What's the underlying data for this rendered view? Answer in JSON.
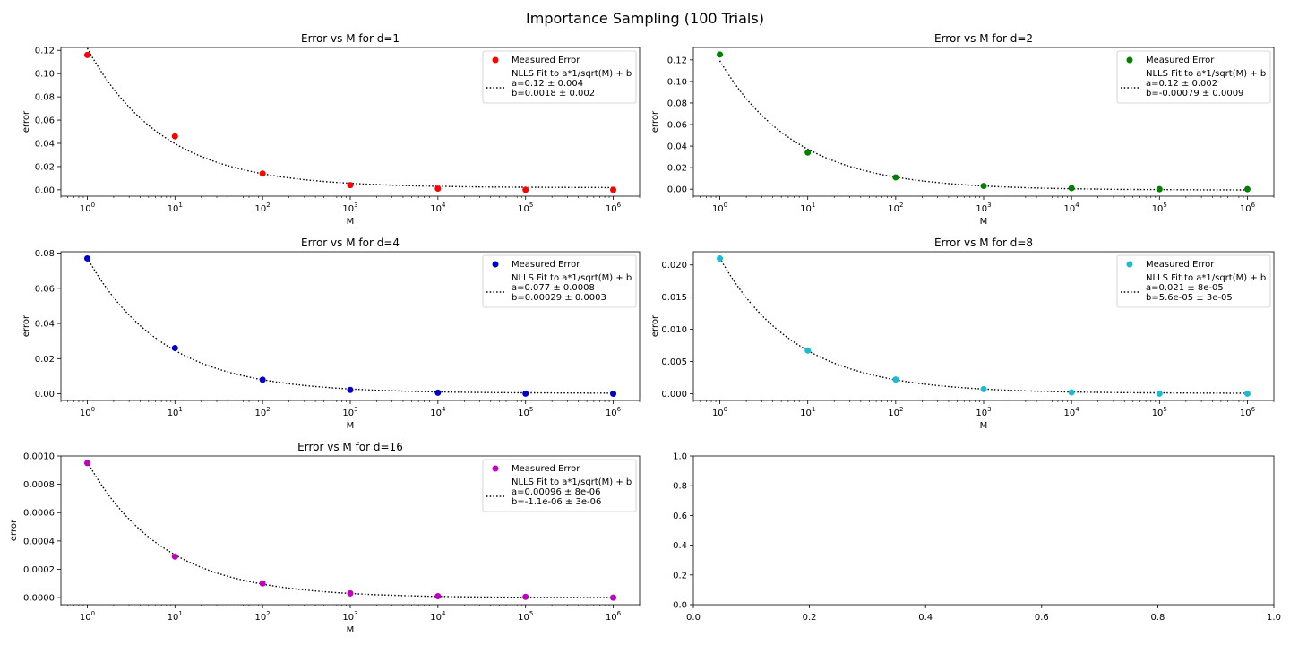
{
  "figure": {
    "suptitle": "Importance Sampling (100 Trials)"
  },
  "chart_data": [
    {
      "type": "scatter",
      "title": "Error vs M for d=1",
      "xlabel": "M",
      "ylabel": "error",
      "xscale": "log",
      "xlim": [
        0.5,
        2000000
      ],
      "ylim": [
        -0.0055,
        0.1225
      ],
      "yticks": [
        0,
        0.02,
        0.04,
        0.06,
        0.08,
        0.1,
        0.12
      ],
      "yticklabels": [
        "0.00",
        "0.02",
        "0.04",
        "0.06",
        "0.08",
        "0.10",
        "0.12"
      ],
      "xticks": [
        1,
        10,
        100,
        1000,
        10000,
        100000,
        1000000
      ],
      "xticklabels": [
        {
          "base": "10",
          "exp": "0"
        },
        {
          "base": "10",
          "exp": "1"
        },
        {
          "base": "10",
          "exp": "2"
        },
        {
          "base": "10",
          "exp": "3"
        },
        {
          "base": "10",
          "exp": "4"
        },
        {
          "base": "10",
          "exp": "5"
        },
        {
          "base": "10",
          "exp": "6"
        }
      ],
      "color": "#ff0000",
      "x": [
        1,
        10,
        100,
        1000,
        10000,
        100000,
        1000000
      ],
      "series": [
        {
          "name": "Measured Error",
          "values": [
            0.116,
            0.046,
            0.014,
            0.004,
            0.001,
            0.0,
            0.0
          ]
        }
      ],
      "fit": {
        "a": 0.12,
        "b": 0.0018
      },
      "legend": {
        "position": "upper-right",
        "scatter_label": "Measured Error",
        "fit_lines": [
          "NLLS Fit to a*1/sqrt(M) + b",
          "a=0.12 ± 0.004",
          "b=0.0018 ± 0.002"
        ]
      }
    },
    {
      "type": "scatter",
      "title": "Error vs M for d=2",
      "xlabel": "M",
      "ylabel": "error",
      "xscale": "log",
      "xlim": [
        0.5,
        2000000
      ],
      "ylim": [
        -0.0065,
        0.1315
      ],
      "yticks": [
        0,
        0.02,
        0.04,
        0.06,
        0.08,
        0.1,
        0.12
      ],
      "yticklabels": [
        "0.00",
        "0.02",
        "0.04",
        "0.06",
        "0.08",
        "0.10",
        "0.12"
      ],
      "xticks": [
        1,
        10,
        100,
        1000,
        10000,
        100000,
        1000000
      ],
      "xticklabels": [
        {
          "base": "10",
          "exp": "0"
        },
        {
          "base": "10",
          "exp": "1"
        },
        {
          "base": "10",
          "exp": "2"
        },
        {
          "base": "10",
          "exp": "3"
        },
        {
          "base": "10",
          "exp": "4"
        },
        {
          "base": "10",
          "exp": "5"
        },
        {
          "base": "10",
          "exp": "6"
        }
      ],
      "color": "#008000",
      "x": [
        1,
        10,
        100,
        1000,
        10000,
        100000,
        1000000
      ],
      "series": [
        {
          "name": "Measured Error",
          "values": [
            0.125,
            0.034,
            0.011,
            0.003,
            0.001,
            0.0,
            0.0
          ]
        }
      ],
      "fit": {
        "a": 0.12,
        "b": -0.00079
      },
      "legend": {
        "position": "upper-right",
        "scatter_label": "Measured Error",
        "fit_lines": [
          "NLLS Fit to a*1/sqrt(M) + b",
          "a=0.12 ± 0.002",
          "b=-0.00079 ± 0.0009"
        ]
      }
    },
    {
      "type": "scatter",
      "title": "Error vs M for d=4",
      "xlabel": "M",
      "ylabel": "error",
      "xscale": "log",
      "xlim": [
        0.5,
        2000000
      ],
      "ylim": [
        -0.0038,
        0.0808
      ],
      "yticks": [
        0,
        0.02,
        0.04,
        0.06,
        0.08
      ],
      "yticklabels": [
        "0.00",
        "0.02",
        "0.04",
        "0.06",
        "0.08"
      ],
      "xticks": [
        1,
        10,
        100,
        1000,
        10000,
        100000,
        1000000
      ],
      "xticklabels": [
        {
          "base": "10",
          "exp": "0"
        },
        {
          "base": "10",
          "exp": "1"
        },
        {
          "base": "10",
          "exp": "2"
        },
        {
          "base": "10",
          "exp": "3"
        },
        {
          "base": "10",
          "exp": "4"
        },
        {
          "base": "10",
          "exp": "5"
        },
        {
          "base": "10",
          "exp": "6"
        }
      ],
      "color": "#0000cc",
      "x": [
        1,
        10,
        100,
        1000,
        10000,
        100000,
        1000000
      ],
      "series": [
        {
          "name": "Measured Error",
          "values": [
            0.077,
            0.026,
            0.008,
            0.0022,
            0.0006,
            0.0001,
            0.0
          ]
        }
      ],
      "fit": {
        "a": 0.077,
        "b": 0.00029
      },
      "legend": {
        "position": "upper-right",
        "scatter_label": "Measured Error",
        "fit_lines": [
          "NLLS Fit to a*1/sqrt(M) + b",
          "a=0.077 ± 0.0008",
          "b=0.00029 ± 0.0003"
        ]
      }
    },
    {
      "type": "scatter",
      "title": "Error vs M for d=8",
      "xlabel": "M",
      "ylabel": "error",
      "xscale": "log",
      "xlim": [
        0.5,
        2000000
      ],
      "ylim": [
        -0.00105,
        0.02205
      ],
      "yticks": [
        0,
        0.005,
        0.01,
        0.015,
        0.02
      ],
      "yticklabels": [
        "0.000",
        "0.005",
        "0.010",
        "0.015",
        "0.020"
      ],
      "xticks": [
        1,
        10,
        100,
        1000,
        10000,
        100000,
        1000000
      ],
      "xticklabels": [
        {
          "base": "10",
          "exp": "0"
        },
        {
          "base": "10",
          "exp": "1"
        },
        {
          "base": "10",
          "exp": "2"
        },
        {
          "base": "10",
          "exp": "3"
        },
        {
          "base": "10",
          "exp": "4"
        },
        {
          "base": "10",
          "exp": "5"
        },
        {
          "base": "10",
          "exp": "6"
        }
      ],
      "color": "#17becf",
      "x": [
        1,
        10,
        100,
        1000,
        10000,
        100000,
        1000000
      ],
      "series": [
        {
          "name": "Measured Error",
          "values": [
            0.021,
            0.0067,
            0.0022,
            0.0007,
            0.0002,
            0.0,
            0.0
          ]
        }
      ],
      "fit": {
        "a": 0.021,
        "b": 5.6e-05
      },
      "legend": {
        "position": "upper-right",
        "scatter_label": "Measured Error",
        "fit_lines": [
          "NLLS Fit to a*1/sqrt(M) + b",
          "a=0.021 ± 8e-05",
          "b=5.6e-05 ± 3e-05"
        ]
      }
    },
    {
      "type": "scatter",
      "title": "Error vs M for d=16",
      "xlabel": "M",
      "ylabel": "error",
      "xscale": "log",
      "xlim": [
        0.5,
        2000000
      ],
      "ylim": [
        -5e-05,
        0.001
      ],
      "yticks": [
        0,
        0.0002,
        0.0004,
        0.0006,
        0.0008,
        0.001
      ],
      "yticklabels": [
        "0.0000",
        "0.0002",
        "0.0004",
        "0.0006",
        "0.0008",
        "0.0010"
      ],
      "xticks": [
        1,
        10,
        100,
        1000,
        10000,
        100000,
        1000000
      ],
      "xticklabels": [
        {
          "base": "10",
          "exp": "0"
        },
        {
          "base": "10",
          "exp": "1"
        },
        {
          "base": "10",
          "exp": "2"
        },
        {
          "base": "10",
          "exp": "3"
        },
        {
          "base": "10",
          "exp": "4"
        },
        {
          "base": "10",
          "exp": "5"
        },
        {
          "base": "10",
          "exp": "6"
        }
      ],
      "color": "#bf00bf",
      "x": [
        1,
        10,
        100,
        1000,
        10000,
        100000,
        1000000
      ],
      "series": [
        {
          "name": "Measured Error",
          "values": [
            0.00095,
            0.00029,
            0.0001,
            3e-05,
            1e-05,
            5e-06,
            0.0
          ]
        }
      ],
      "fit": {
        "a": 0.00096,
        "b": -1.1e-06
      },
      "legend": {
        "position": "upper-right",
        "scatter_label": "Measured Error",
        "fit_lines": [
          "NLLS Fit to a*1/sqrt(M) + b",
          "a=0.00096 ± 8e-06",
          "b=-1.1e-06 ± 3e-06"
        ]
      }
    },
    {
      "type": "scatter",
      "title": "",
      "xlabel": "",
      "ylabel": "",
      "xscale": "linear",
      "xlim": [
        0,
        1
      ],
      "ylim": [
        0,
        1
      ],
      "yticks": [
        0,
        0.2,
        0.4,
        0.6,
        0.8,
        1
      ],
      "yticklabels": [
        "0.0",
        "0.2",
        "0.4",
        "0.6",
        "0.8",
        "1.0"
      ],
      "xticks": [
        0,
        0.2,
        0.4,
        0.6,
        0.8,
        1
      ],
      "xticklabels": [
        "0.0",
        "0.2",
        "0.4",
        "0.6",
        "0.8",
        "1.0"
      ],
      "color": "#000000",
      "x": [],
      "series": [],
      "empty": true
    }
  ]
}
